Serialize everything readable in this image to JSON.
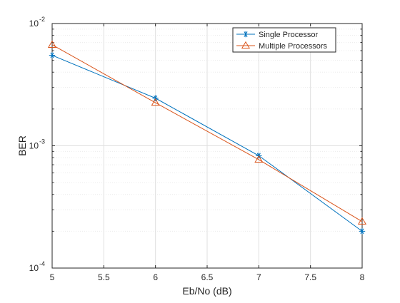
{
  "chart_data": {
    "type": "line",
    "title": "",
    "xlabel": "Eb/No (dB)",
    "ylabel": "BER",
    "x_scale": "linear",
    "y_scale": "log",
    "xlim": [
      5,
      8
    ],
    "ylim": [
      0.0001,
      0.01
    ],
    "x_ticks": [
      5,
      5.5,
      6,
      6.5,
      7,
      7.5,
      8
    ],
    "x_tick_labels": [
      "5",
      "5.5",
      "6",
      "6.5",
      "7",
      "7.5",
      "8"
    ],
    "y_ticks": [
      0.0001,
      0.001,
      0.01
    ],
    "y_tick_labels": [
      {
        "base": "10",
        "exp": "-4"
      },
      {
        "base": "10",
        "exp": "-3"
      },
      {
        "base": "10",
        "exp": "-2"
      }
    ],
    "grid": true,
    "minor_grid_y": true,
    "legend_position": "top-right",
    "x": [
      5,
      6,
      7,
      8
    ],
    "series": [
      {
        "name": "Single Processor",
        "values": [
          0.0055,
          0.00245,
          0.00083,
          0.0002
        ],
        "color": "#0072BD",
        "marker": "asterisk"
      },
      {
        "name": "Multiple Processors",
        "values": [
          0.0067,
          0.00225,
          0.00077,
          0.00024
        ],
        "color": "#D95319",
        "marker": "triangle"
      }
    ]
  }
}
